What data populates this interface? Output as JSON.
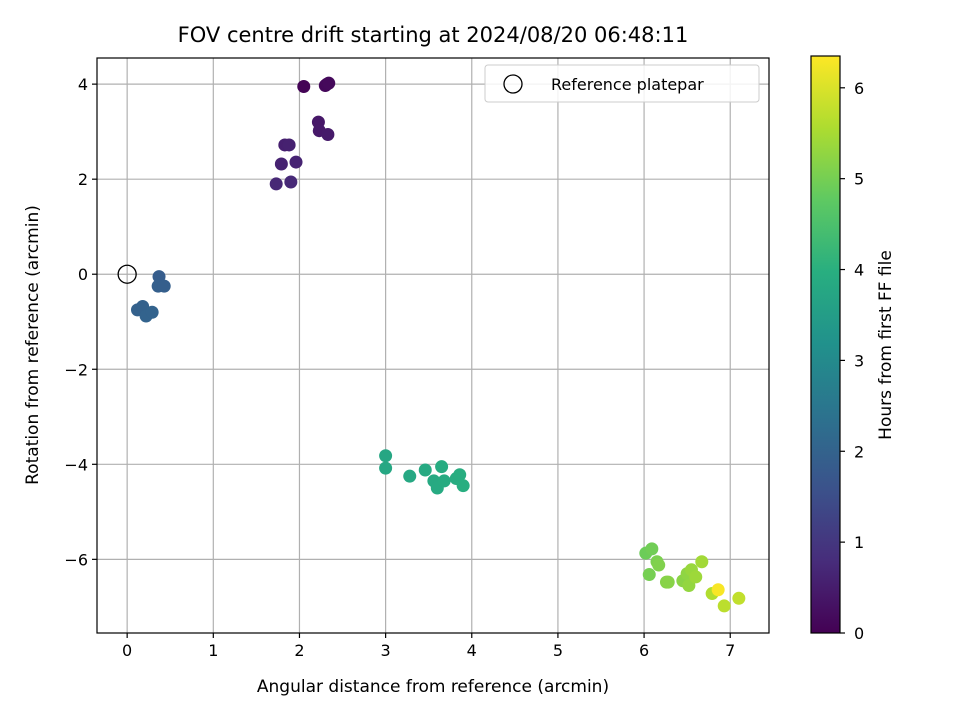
{
  "chart_data": {
    "type": "scatter",
    "title": "FOV centre drift starting at 2024/08/20 06:48:11",
    "xlabel": "Angular distance from reference (arcmin)",
    "ylabel": "Rotation from reference (arcmin)",
    "xlim": [
      -0.35,
      7.45
    ],
    "ylim": [
      -7.55,
      4.55
    ],
    "xticks": [
      "0",
      "1",
      "2",
      "3",
      "4",
      "5",
      "6",
      "7"
    ],
    "yticks": [
      "−6",
      "−4",
      "−2",
      "0",
      "2",
      "4"
    ],
    "grid": true,
    "legend": {
      "position": "top-right",
      "entries": [
        "Reference platepar"
      ]
    },
    "reference_point": {
      "x": 0,
      "y": 0
    },
    "colorbar": {
      "label": "Hours from first FF file",
      "range": [
        0,
        6.35
      ],
      "ticks": [
        "0",
        "1",
        "2",
        "3",
        "4",
        "5",
        "6"
      ],
      "colormap": "viridis"
    },
    "points": [
      {
        "x": 2.05,
        "y": 3.95,
        "c": 0.05
      },
      {
        "x": 2.3,
        "y": 3.97,
        "c": 0.1
      },
      {
        "x": 2.32,
        "y": 4.0,
        "c": 0.12
      },
      {
        "x": 2.34,
        "y": 4.02,
        "c": 0.15
      },
      {
        "x": 2.22,
        "y": 3.2,
        "c": 0.4
      },
      {
        "x": 2.23,
        "y": 3.02,
        "c": 0.42
      },
      {
        "x": 2.33,
        "y": 2.94,
        "c": 0.45
      },
      {
        "x": 1.83,
        "y": 2.72,
        "c": 0.55
      },
      {
        "x": 1.88,
        "y": 2.72,
        "c": 0.57
      },
      {
        "x": 1.79,
        "y": 2.32,
        "c": 0.6
      },
      {
        "x": 1.96,
        "y": 2.36,
        "c": 0.62
      },
      {
        "x": 1.73,
        "y": 1.9,
        "c": 0.7
      },
      {
        "x": 1.9,
        "y": 1.94,
        "c": 0.72
      },
      {
        "x": 0.37,
        "y": -0.05,
        "c": 1.85
      },
      {
        "x": 0.36,
        "y": -0.25,
        "c": 1.9
      },
      {
        "x": 0.43,
        "y": -0.25,
        "c": 1.92
      },
      {
        "x": 0.12,
        "y": -0.75,
        "c": 1.95
      },
      {
        "x": 0.18,
        "y": -0.68,
        "c": 1.97
      },
      {
        "x": 0.22,
        "y": -0.88,
        "c": 2.0
      },
      {
        "x": 0.29,
        "y": -0.8,
        "c": 2.02
      },
      {
        "x": 3.0,
        "y": -3.82,
        "c": 3.75
      },
      {
        "x": 3.0,
        "y": -4.08,
        "c": 3.77
      },
      {
        "x": 3.28,
        "y": -4.25,
        "c": 3.8
      },
      {
        "x": 3.46,
        "y": -4.12,
        "c": 3.82
      },
      {
        "x": 3.56,
        "y": -4.35,
        "c": 3.84
      },
      {
        "x": 3.6,
        "y": -4.5,
        "c": 3.86
      },
      {
        "x": 3.65,
        "y": -4.05,
        "c": 3.88
      },
      {
        "x": 3.68,
        "y": -4.35,
        "c": 3.9
      },
      {
        "x": 3.82,
        "y": -4.3,
        "c": 3.92
      },
      {
        "x": 3.86,
        "y": -4.22,
        "c": 3.94
      },
      {
        "x": 3.9,
        "y": -4.45,
        "c": 3.96
      },
      {
        "x": 6.02,
        "y": -5.87,
        "c": 4.9
      },
      {
        "x": 6.09,
        "y": -5.78,
        "c": 4.95
      },
      {
        "x": 6.06,
        "y": -6.32,
        "c": 5.0
      },
      {
        "x": 6.15,
        "y": -6.05,
        "c": 5.05
      },
      {
        "x": 6.17,
        "y": -6.12,
        "c": 5.1
      },
      {
        "x": 6.26,
        "y": -6.48,
        "c": 5.15
      },
      {
        "x": 6.28,
        "y": -6.48,
        "c": 5.18
      },
      {
        "x": 6.45,
        "y": -6.45,
        "c": 5.2
      },
      {
        "x": 6.5,
        "y": -6.3,
        "c": 5.25
      },
      {
        "x": 6.52,
        "y": -6.55,
        "c": 5.3
      },
      {
        "x": 6.55,
        "y": -6.22,
        "c": 5.35
      },
      {
        "x": 6.6,
        "y": -6.37,
        "c": 5.4
      },
      {
        "x": 6.67,
        "y": -6.05,
        "c": 5.45
      },
      {
        "x": 6.79,
        "y": -6.72,
        "c": 5.6
      },
      {
        "x": 6.93,
        "y": -6.98,
        "c": 5.7
      },
      {
        "x": 7.1,
        "y": -6.82,
        "c": 5.75
      },
      {
        "x": 6.86,
        "y": -6.64,
        "c": 6.3
      }
    ]
  }
}
